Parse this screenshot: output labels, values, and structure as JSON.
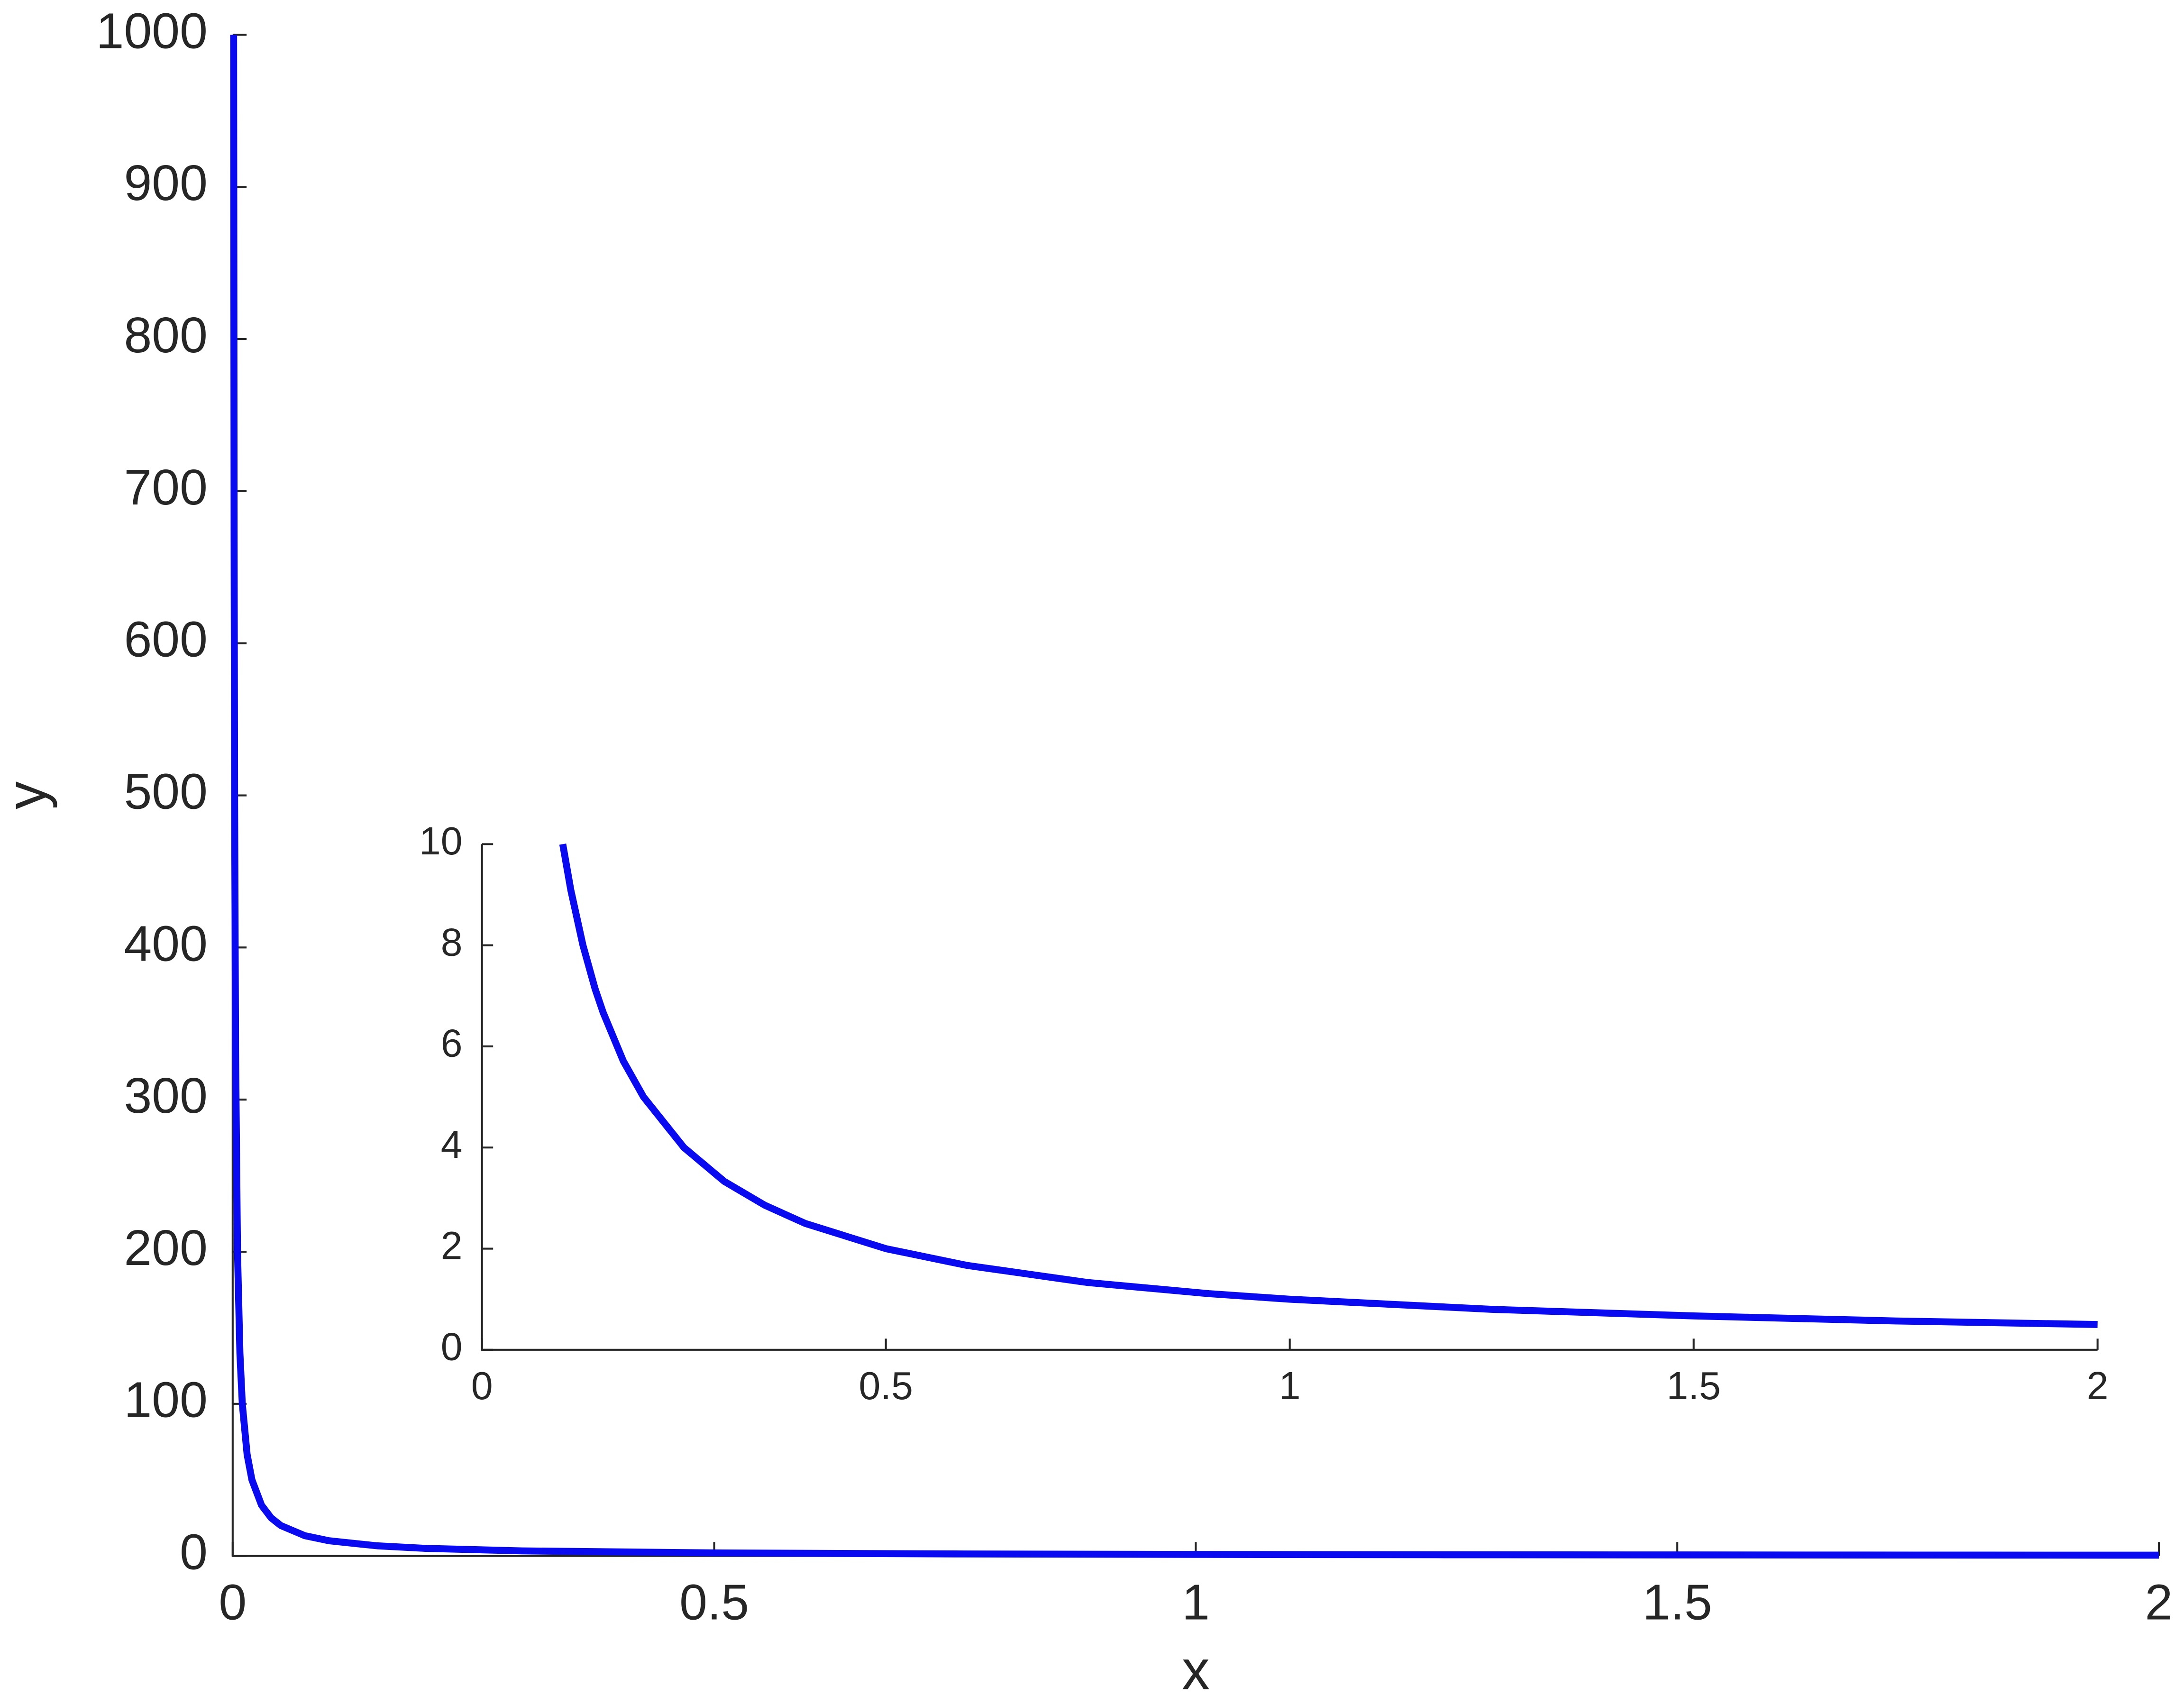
{
  "chart_data": [
    {
      "type": "line",
      "xlabel": "x",
      "ylabel": "y",
      "color": "#0a0af0",
      "x": [
        0.001,
        0.0015,
        0.002,
        0.003,
        0.005,
        0.0075,
        0.01,
        0.015,
        0.02,
        0.03,
        0.04,
        0.05,
        0.075,
        0.1,
        0.15,
        0.2,
        0.3,
        0.5,
        0.75,
        1,
        1.25,
        1.5,
        1.75,
        2
      ],
      "values": [
        1000,
        666.7,
        500,
        333.3,
        200,
        133.3,
        100,
        66.7,
        50,
        33.3,
        25,
        20,
        13.3,
        10,
        6.67,
        5,
        3.33,
        2,
        1.33,
        1,
        0.8,
        0.67,
        0.57,
        0.5
      ],
      "xlim": [
        0,
        2
      ],
      "ylim": [
        0,
        1000
      ],
      "xticks": [
        0,
        0.5,
        1,
        1.5,
        2
      ],
      "yticks": [
        0,
        100,
        200,
        300,
        400,
        500,
        600,
        700,
        800,
        900,
        1000
      ]
    },
    {
      "type": "line",
      "color": "#0a0af0",
      "x": [
        0.1,
        0.11,
        0.125,
        0.14,
        0.15,
        0.175,
        0.2,
        0.25,
        0.3,
        0.35,
        0.4,
        0.5,
        0.6,
        0.75,
        0.9,
        1,
        1.25,
        1.5,
        1.75,
        2
      ],
      "values": [
        10,
        9.09,
        8,
        7.14,
        6.67,
        5.71,
        5,
        4,
        3.33,
        2.86,
        2.5,
        2,
        1.67,
        1.33,
        1.11,
        1,
        0.8,
        0.67,
        0.57,
        0.5
      ],
      "xlim": [
        0,
        2
      ],
      "ylim": [
        0,
        10
      ],
      "xticks": [
        0,
        0.5,
        1,
        1.5,
        2
      ],
      "yticks": [
        0,
        2,
        4,
        6,
        8,
        10
      ]
    }
  ]
}
